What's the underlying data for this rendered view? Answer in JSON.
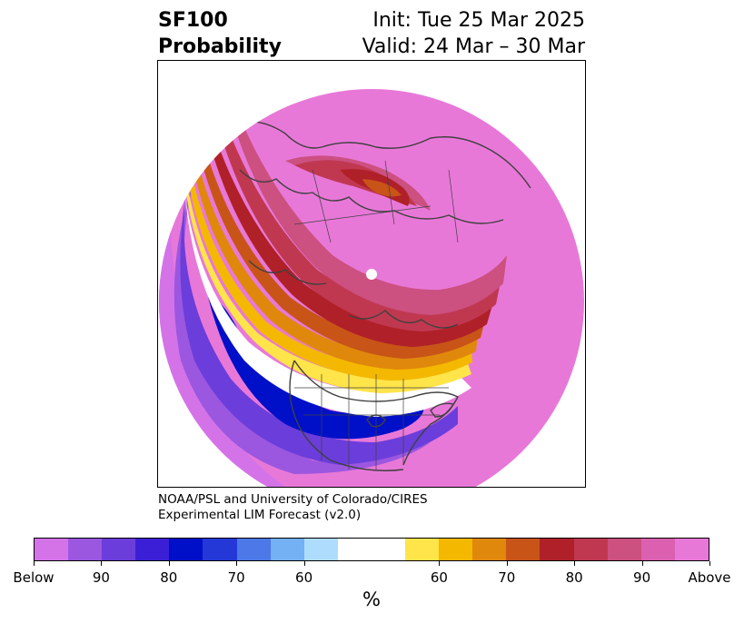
{
  "title": {
    "variable": "SF100",
    "product": "Probability",
    "init": "Init: Tue 25 Mar 2025",
    "valid": "Valid: 24 Mar – 30 Mar"
  },
  "credit": {
    "line1": "NOAA/PSL and University of Colorado/CIRES",
    "line2": "Experimental LIM Forecast (v2.0)"
  },
  "colorbar": {
    "unit": "%",
    "colors": [
      "#d473e8",
      "#9b57e0",
      "#6b3ddb",
      "#3a1fd6",
      "#0010c8",
      "#2438d8",
      "#4c78e8",
      "#74b0f4",
      "#aedcfc",
      "#ffffff",
      "#ffe44a",
      "#f4b800",
      "#e0880c",
      "#c85418",
      "#b02028",
      "#c03850",
      "#cc5080",
      "#dc60b0",
      "#e878d8"
    ],
    "labels": [
      "Below",
      "90",
      "80",
      "70",
      "60",
      "60",
      "70",
      "80",
      "90",
      "Above"
    ],
    "colors_meaning": {
      "below_extreme": "#d473e8",
      "above_extreme": "#e878d8",
      "neutral": "#ffffff"
    }
  },
  "map": {
    "projection": "north-polar-stereographic",
    "background_fill": "#e878d8",
    "coastline_color": "#404040"
  }
}
